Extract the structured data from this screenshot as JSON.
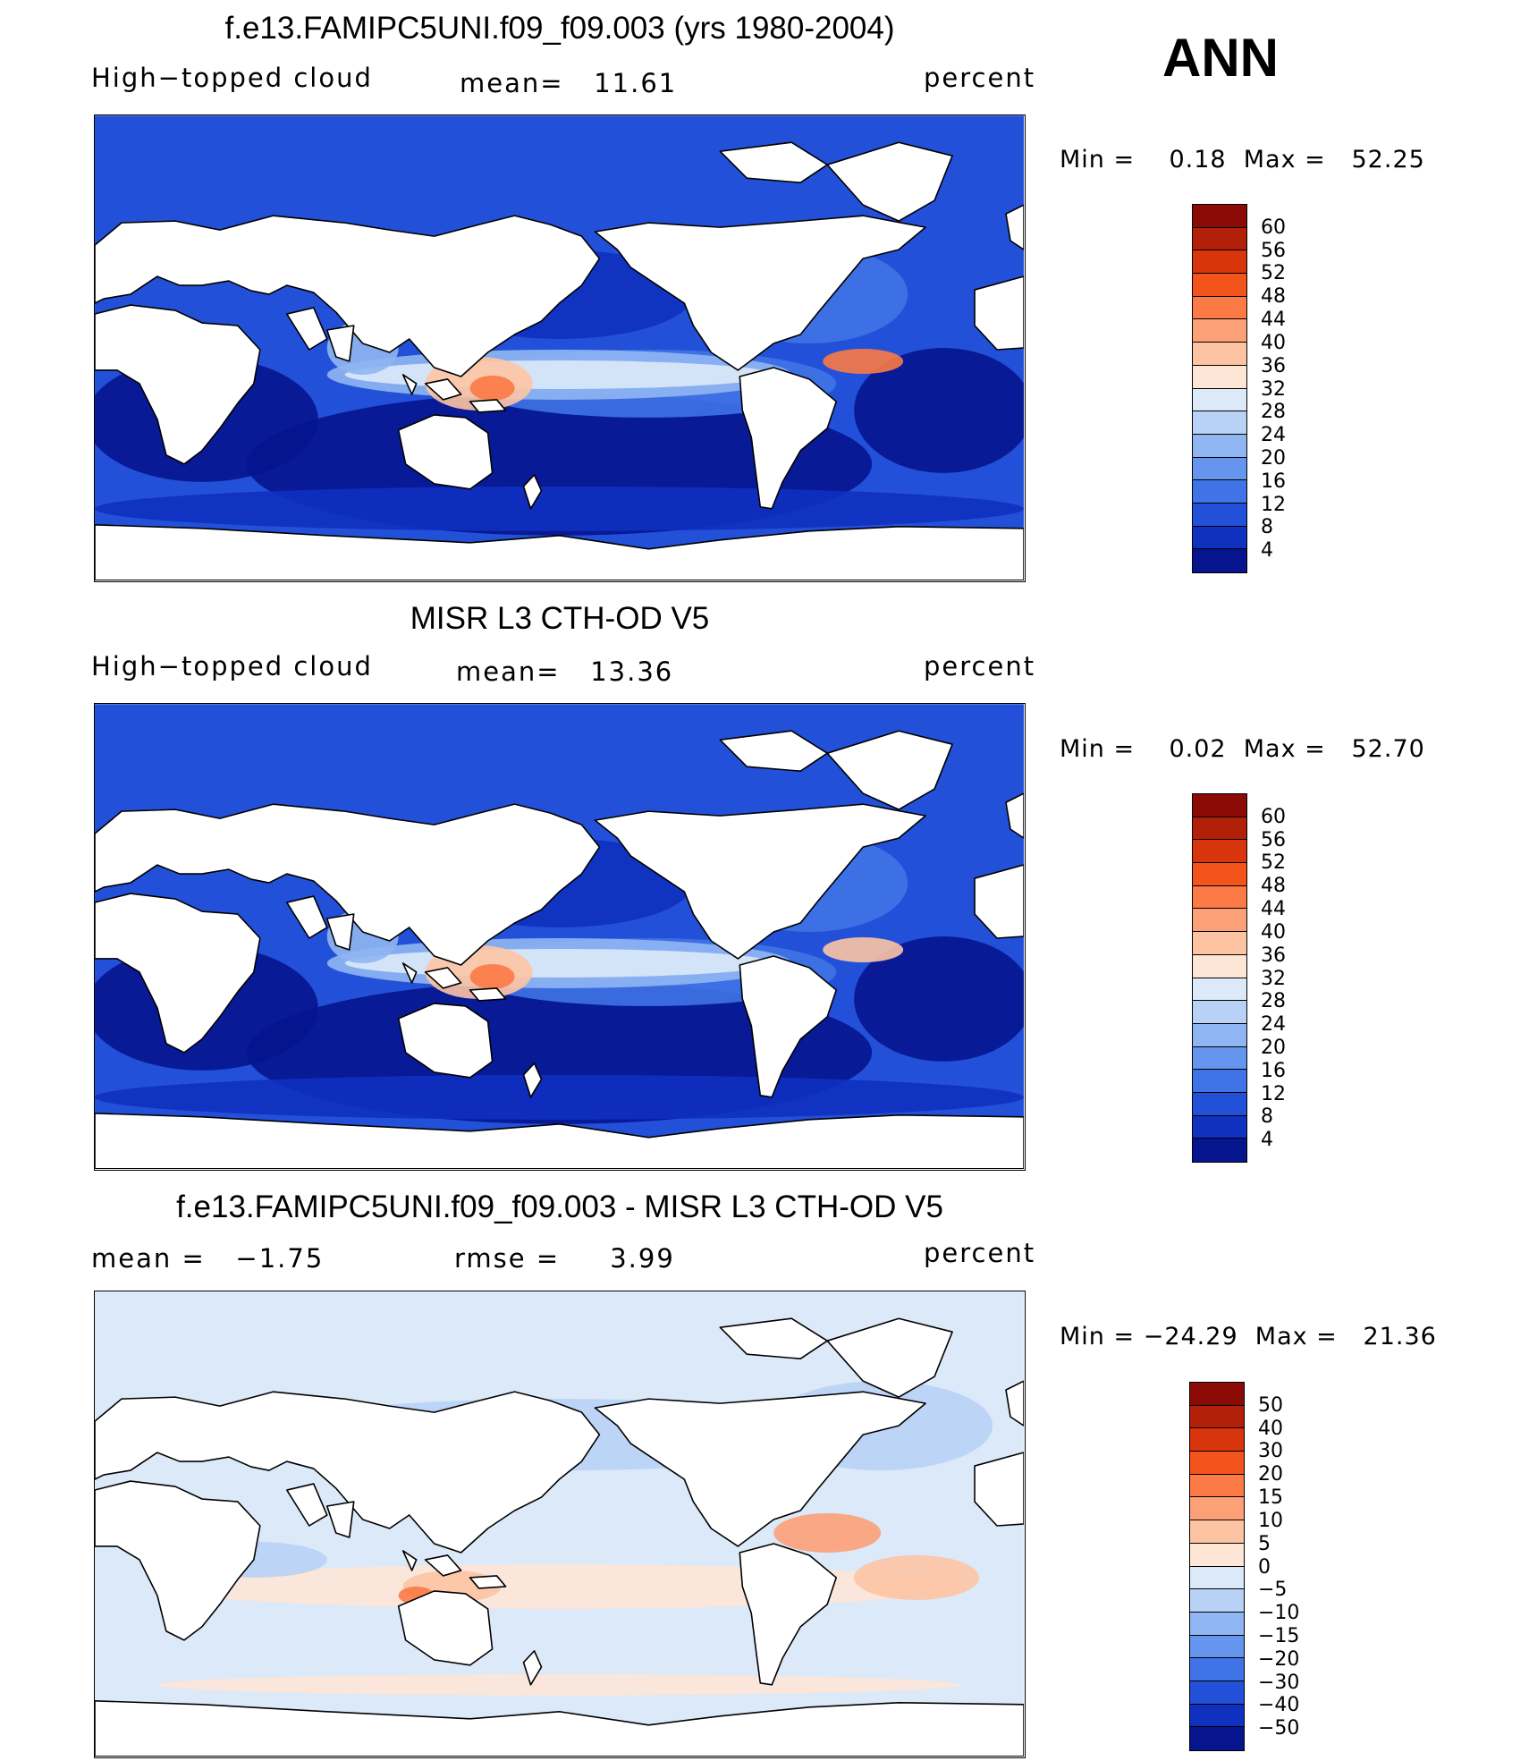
{
  "season": "ANN",
  "chart_data": [
    {
      "type": "heatmap",
      "title": "f.e13.FAMIPC5UNI.f09_f09.003 (yrs 1980-2004)",
      "left_label": "High−topped cloud",
      "center_label": "mean=   11.61",
      "units": "percent",
      "mean": 11.61,
      "min_max": "Min =    0.18  Max =   52.25",
      "min": 0.18,
      "max": 52.25,
      "levels": [
        "60",
        "56",
        "52",
        "48",
        "44",
        "40",
        "36",
        "32",
        "28",
        "24",
        "20",
        "16",
        "12",
        "8",
        "4"
      ],
      "colors": [
        "#8b0a05",
        "#b3200a",
        "#d8350d",
        "#f2541c",
        "#fb7a45",
        "#fca077",
        "#fdc4a4",
        "#fde6d6",
        "#dbe9f8",
        "#b8d2f5",
        "#8fb6f2",
        "#6595ee",
        "#3f73e6",
        "#2350d8",
        "#1030c0",
        "#06148e"
      ]
    },
    {
      "type": "heatmap",
      "title": "MISR L3 CTH-OD V5",
      "left_label": "High−topped cloud",
      "center_label": "mean=   13.36",
      "units": "percent",
      "mean": 13.36,
      "min_max": "Min =    0.02  Max =   52.70",
      "min": 0.02,
      "max": 52.7,
      "levels": [
        "60",
        "56",
        "52",
        "48",
        "44",
        "40",
        "36",
        "32",
        "28",
        "24",
        "20",
        "16",
        "12",
        "8",
        "4"
      ],
      "colors": [
        "#8b0a05",
        "#b3200a",
        "#d8350d",
        "#f2541c",
        "#fb7a45",
        "#fca077",
        "#fdc4a4",
        "#fde6d6",
        "#dbe9f8",
        "#b8d2f5",
        "#8fb6f2",
        "#6595ee",
        "#3f73e6",
        "#2350d8",
        "#1030c0",
        "#06148e"
      ]
    },
    {
      "type": "heatmap",
      "title": "f.e13.FAMIPC5UNI.f09_f09.003 - MISR L3 CTH-OD V5",
      "left_label": "mean =   −1.75",
      "center_label": "rmse =     3.99",
      "units": "percent",
      "mean": -1.75,
      "rmse": 3.99,
      "min_max": "Min = −24.29  Max =   21.36",
      "min": -24.29,
      "max": 21.36,
      "levels": [
        "50",
        "40",
        "30",
        "20",
        "15",
        "10",
        "5",
        "0",
        "−5",
        "−10",
        "−15",
        "−20",
        "−30",
        "−40",
        "−50"
      ],
      "colors": [
        "#8b0a05",
        "#b3200a",
        "#d8350d",
        "#f2541c",
        "#fb7a45",
        "#fca077",
        "#fdc4a4",
        "#fde6d6",
        "#dbe9f8",
        "#b8d2f5",
        "#8fb6f2",
        "#6595ee",
        "#3f73e6",
        "#2350d8",
        "#1030c0",
        "#06148e"
      ]
    }
  ]
}
